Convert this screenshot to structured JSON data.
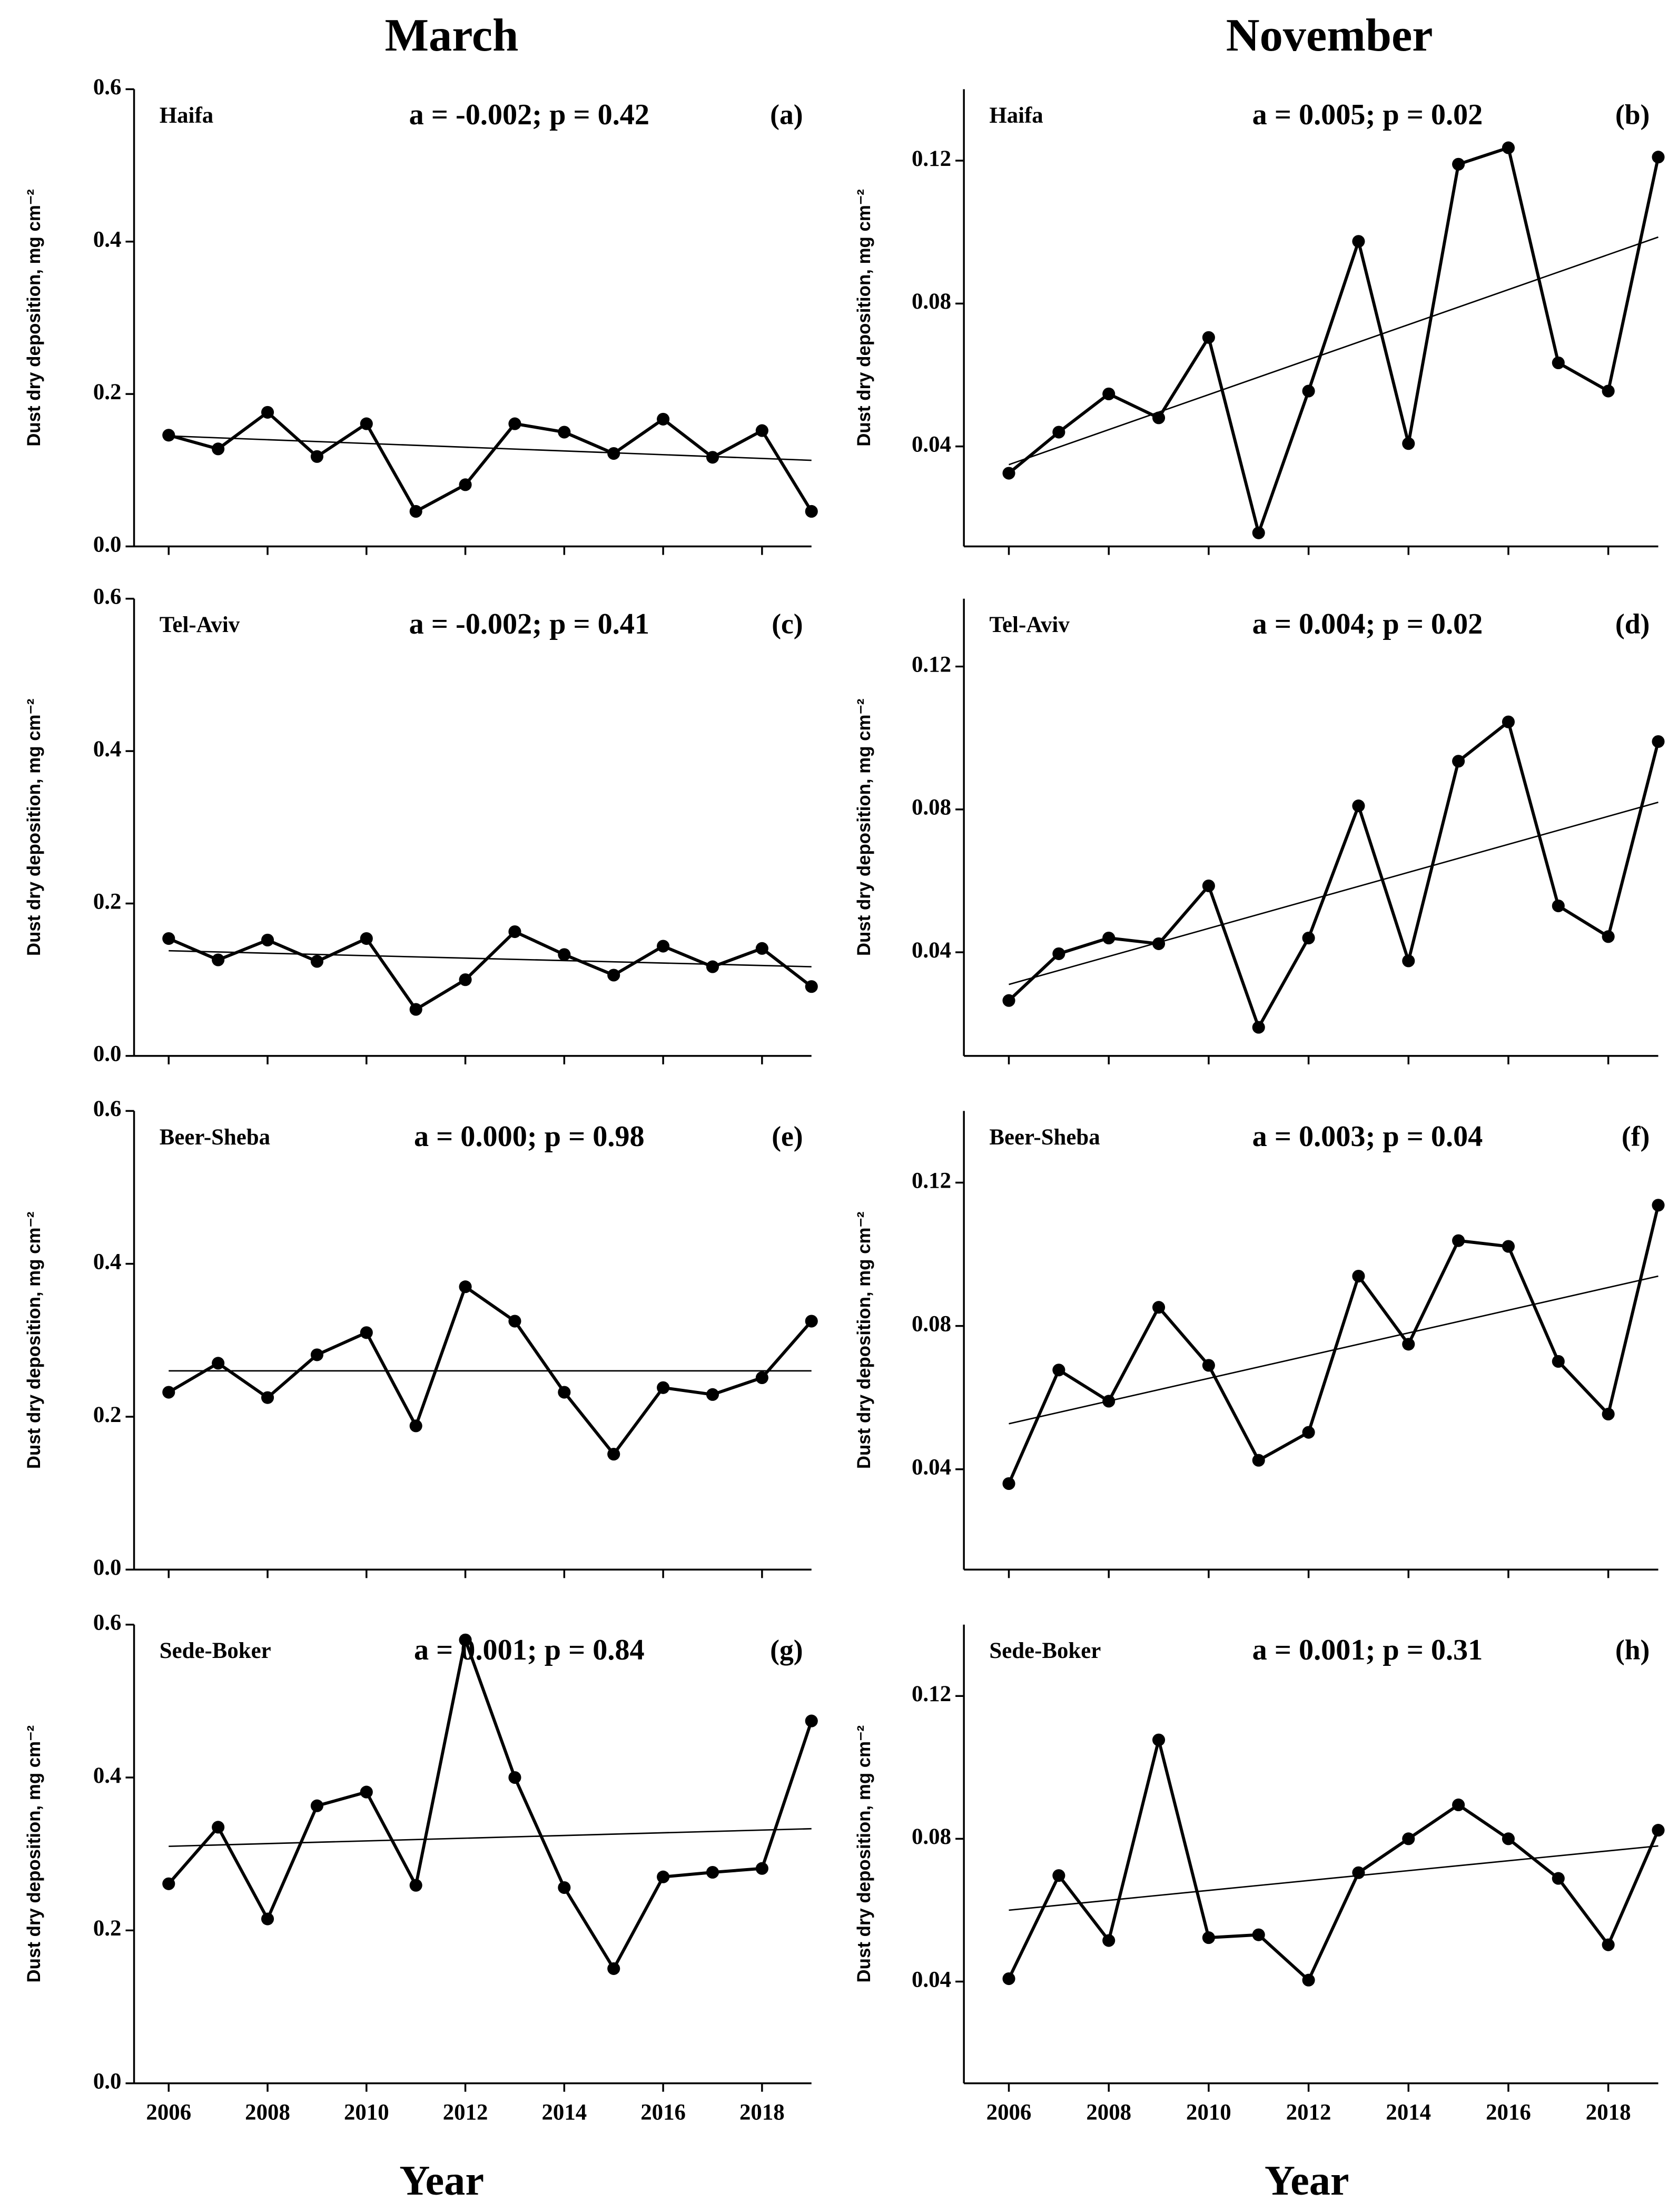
{
  "columns": [
    "March",
    "November"
  ],
  "x_label": "Year",
  "chart_data": [
    {
      "type": "line",
      "title": "Haifa",
      "annotation": "a = -0.002;  p = 0.42",
      "panel": "(a)",
      "y_label": "Dust dry deposition,  mg cm⁻²",
      "x": [
        2006,
        2007,
        2008,
        2009,
        2010,
        2011,
        2012,
        2013,
        2014,
        2015,
        2016,
        2017,
        2018,
        2019
      ],
      "values": [
        0.146,
        0.128,
        0.176,
        0.118,
        0.161,
        0.046,
        0.081,
        0.161,
        0.15,
        0.122,
        0.167,
        0.117,
        0.152,
        0.046
      ],
      "trend": {
        "x": [
          2006,
          2019
        ],
        "values": [
          0.145,
          0.113
        ]
      },
      "color": "#000000",
      "xlim": [
        2005.3,
        2019
      ],
      "ylim": [
        0,
        0.6
      ],
      "xticks": [
        2006,
        2008,
        2010,
        2012,
        2014,
        2016,
        2018
      ],
      "yticks": [
        {
          "value": 0,
          "label": "0.0"
        },
        0.2,
        0.4,
        0.6
      ]
    },
    {
      "type": "line",
      "title": "Haifa",
      "annotation": "a = 0.005;  p = 0.02",
      "panel": "(b)",
      "y_label": "Dust dry deposition,  mg cm⁻²",
      "x": [
        2006,
        2007,
        2008,
        2009,
        2010,
        2011,
        2012,
        2013,
        2014,
        2015,
        2016,
        2017,
        2018,
        2019
      ],
      "values": [
        0.0325,
        0.044,
        0.0547,
        0.048,
        0.0705,
        0.0158,
        0.0555,
        0.0974,
        0.0408,
        0.119,
        0.1236,
        0.0634,
        0.0555,
        0.121
      ],
      "trend": {
        "x": [
          2006,
          2019
        ],
        "values": [
          0.0349,
          0.0986
        ]
      },
      "color": "#000000",
      "xlim": [
        2005.1,
        2019
      ],
      "ylim": [
        0.012,
        0.14
      ],
      "xticks": [
        2006,
        2008,
        2010,
        2012,
        2014,
        2016,
        2018
      ],
      "yticks": [
        0.04,
        0.08,
        0.12
      ]
    },
    {
      "type": "line",
      "title": "Tel-Aviv",
      "annotation": "a = -0.002;  p = 0.41",
      "panel": "(c)",
      "y_label": "Dust dry deposition,  mg cm⁻²",
      "x": [
        2006,
        2007,
        2008,
        2009,
        2010,
        2011,
        2012,
        2013,
        2014,
        2015,
        2016,
        2017,
        2018,
        2019
      ],
      "values": [
        0.154,
        0.126,
        0.152,
        0.124,
        0.154,
        0.061,
        0.1,
        0.163,
        0.133,
        0.106,
        0.144,
        0.117,
        0.141,
        0.091
      ],
      "trend": {
        "x": [
          2006,
          2019
        ],
        "values": [
          0.138,
          0.117
        ]
      },
      "color": "#000000",
      "xlim": [
        2005.3,
        2019
      ],
      "ylim": [
        0,
        0.6
      ],
      "xticks": [
        2006,
        2008,
        2010,
        2012,
        2014,
        2016,
        2018
      ],
      "yticks": [
        {
          "value": 0,
          "label": "0.0"
        },
        0.2,
        0.4,
        0.6
      ]
    },
    {
      "type": "line",
      "title": "Tel-Aviv",
      "annotation": "a = 0.004;  p = 0.02",
      "panel": "(d)",
      "y_label": "Dust dry deposition,  mg cm⁻²",
      "x": [
        2006,
        2007,
        2008,
        2009,
        2010,
        2011,
        2012,
        2013,
        2014,
        2015,
        2016,
        2017,
        2018,
        2019
      ],
      "values": [
        0.0265,
        0.0396,
        0.044,
        0.0424,
        0.0586,
        0.019,
        0.044,
        0.081,
        0.0376,
        0.0935,
        0.1045,
        0.053,
        0.0444,
        0.099
      ],
      "trend": {
        "x": [
          2006,
          2019
        ],
        "values": [
          0.031,
          0.082
        ]
      },
      "color": "#000000",
      "xlim": [
        2005.1,
        2019
      ],
      "ylim": [
        0.011,
        0.139
      ],
      "xticks": [
        2006,
        2008,
        2010,
        2012,
        2014,
        2016,
        2018
      ],
      "yticks": [
        0.04,
        0.08,
        0.12
      ]
    },
    {
      "type": "line",
      "title": "Beer-Sheba",
      "annotation": "a = 0.000;  p = 0.98",
      "panel": "(e)",
      "y_label": "Dust dry deposition,  mg cm⁻²",
      "x": [
        2006,
        2007,
        2008,
        2009,
        2010,
        2011,
        2012,
        2013,
        2014,
        2015,
        2016,
        2017,
        2018,
        2019
      ],
      "values": [
        0.232,
        0.27,
        0.225,
        0.281,
        0.31,
        0.188,
        0.37,
        0.325,
        0.232,
        0.151,
        0.238,
        0.229,
        0.251,
        0.325
      ],
      "trend": {
        "x": [
          2006,
          2019
        ],
        "values": [
          0.26,
          0.26
        ]
      },
      "color": "#000000",
      "xlim": [
        2005.3,
        2019
      ],
      "ylim": [
        0,
        0.6
      ],
      "xticks": [
        2006,
        2008,
        2010,
        2012,
        2014,
        2016,
        2018
      ],
      "yticks": [
        {
          "value": 0,
          "label": "0.0"
        },
        0.2,
        0.4,
        0.6
      ]
    },
    {
      "type": "line",
      "title": "Beer-Sheba",
      "annotation": "a = 0.003;  p = 0.04",
      "panel": "(f)",
      "y_label": "Dust dry deposition,  mg cm⁻²",
      "x": [
        2006,
        2007,
        2008,
        2009,
        2010,
        2011,
        2012,
        2013,
        2014,
        2015,
        2016,
        2017,
        2018,
        2019
      ],
      "values": [
        0.036,
        0.0677,
        0.059,
        0.0852,
        0.069,
        0.0425,
        0.0503,
        0.0939,
        0.0749,
        0.1038,
        0.1022,
        0.0701,
        0.0554,
        0.1137
      ],
      "trend": {
        "x": [
          2006,
          2019
        ],
        "values": [
          0.0527,
          0.0939
        ]
      },
      "color": "#000000",
      "xlim": [
        2005.1,
        2019
      ],
      "ylim": [
        0.012,
        0.14
      ],
      "xticks": [
        2006,
        2008,
        2010,
        2012,
        2014,
        2016,
        2018
      ],
      "yticks": [
        0.04,
        0.08,
        0.12
      ]
    },
    {
      "type": "line",
      "title": "Sede-Boker",
      "annotation": "a = 0.001; p = 0.84",
      "panel": "(g)",
      "y_label": "Dust dry deposition,  mg cm⁻²",
      "x": [
        2006,
        2007,
        2008,
        2009,
        2010,
        2011,
        2012,
        2013,
        2014,
        2015,
        2016,
        2017,
        2018,
        2019
      ],
      "values": [
        0.261,
        0.335,
        0.215,
        0.363,
        0.381,
        0.259,
        0.58,
        0.4,
        0.256,
        0.15,
        0.27,
        0.276,
        0.281,
        0.474
      ],
      "trend": {
        "x": [
          2006,
          2019
        ],
        "values": [
          0.31,
          0.333
        ]
      },
      "color": "#000000",
      "xlim": [
        2005.3,
        2019
      ],
      "ylim": [
        0,
        0.6
      ],
      "xticks": [
        2006,
        2008,
        2010,
        2012,
        2014,
        2016,
        2018
      ],
      "yticks": [
        {
          "value": 0,
          "label": "0.0"
        },
        0.2,
        0.4,
        0.6
      ]
    },
    {
      "type": "line",
      "title": "Sede-Boker",
      "annotation": "a = 0.001;  p = 0.31",
      "panel": "(h)",
      "y_label": "Dust dry deposition,  mg cm⁻²",
      "x": [
        2006,
        2007,
        2008,
        2009,
        2010,
        2011,
        2012,
        2013,
        2014,
        2015,
        2016,
        2017,
        2018,
        2019
      ],
      "values": [
        0.0408,
        0.0697,
        0.0515,
        0.1077,
        0.0523,
        0.0531,
        0.0404,
        0.0705,
        0.08,
        0.0895,
        0.08,
        0.0689,
        0.0503,
        0.0824
      ],
      "trend": {
        "x": [
          2006,
          2019
        ],
        "values": [
          0.06,
          0.078
        ]
      },
      "color": "#000000",
      "xlim": [
        2005.1,
        2019
      ],
      "ylim": [
        0.0115,
        0.14
      ],
      "xticks": [
        2006,
        2008,
        2010,
        2012,
        2014,
        2016,
        2018
      ],
      "yticks": [
        0.04,
        0.08,
        0.12
      ]
    }
  ]
}
